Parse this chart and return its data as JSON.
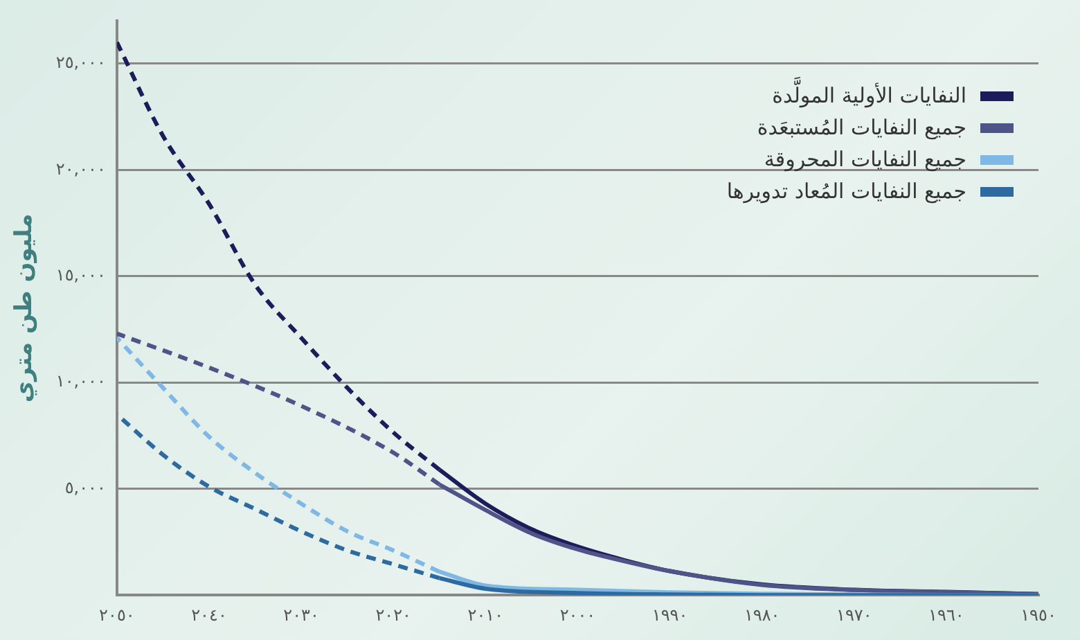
{
  "chart_data": {
    "type": "line",
    "ylabel": "مليون طن متري",
    "xlim": [
      2050,
      1950
    ],
    "xticks": [
      {
        "value": 2050,
        "label": "٢٠٥٠"
      },
      {
        "value": 2040,
        "label": "٢٠٤٠"
      },
      {
        "value": 2030,
        "label": "٢٠٣٠"
      },
      {
        "value": 2020,
        "label": "٢٠٢٠"
      },
      {
        "value": 2010,
        "label": "٢٠١٠"
      },
      {
        "value": 2000,
        "label": "٢٠٠٠"
      },
      {
        "value": 1990,
        "label": "١٩٩٠"
      },
      {
        "value": 1980,
        "label": "١٩٨٠"
      },
      {
        "value": 1970,
        "label": "١٩٧٠"
      },
      {
        "value": 1960,
        "label": "١٩٦٠"
      },
      {
        "value": 1950,
        "label": "١٩٥٠"
      }
    ],
    "ylim": [
      0,
      27000
    ],
    "yticks": [
      {
        "value": 5000,
        "label": "٥,٠٠٠"
      },
      {
        "value": 10000,
        "label": "١٠,٠٠٠"
      },
      {
        "value": 15000,
        "label": "١٥,٠٠٠"
      },
      {
        "value": 20000,
        "label": "٢٠,٠٠٠"
      },
      {
        "value": 25000,
        "label": "٢٥,٠٠٠"
      }
    ],
    "grid": "y",
    "legend": "top right",
    "marker": "none",
    "line_style": "solid",
    "series": [
      {
        "name": "النفايات الأولية المولَّدة",
        "color": "#1c1c5a",
        "x": [
          1950,
          1960,
          1970,
          1980,
          1990,
          1995,
          2000,
          2005,
          2010,
          2015
        ],
        "values": [
          50,
          150,
          250,
          500,
          1130,
          1650,
          2280,
          3100,
          4300,
          5900
        ]
      },
      {
        "name": "جميع النفايات المُستبعَدة",
        "color": "#4f5488",
        "x": [
          1950,
          1960,
          1970,
          1980,
          1990,
          1995,
          2000,
          2005,
          2010,
          2015
        ],
        "values": [
          50,
          140,
          240,
          480,
          1130,
          1600,
          2150,
          2900,
          4000,
          5200
        ]
      },
      {
        "name": "جميع النفايات المحروقة",
        "color": "#7fb8e4",
        "x": [
          1950,
          1960,
          1970,
          1980,
          1990,
          2000,
          2010,
          2015
        ],
        "values": [
          0,
          10,
          30,
          60,
          130,
          250,
          450,
          1100
        ]
      },
      {
        "name": "جميع النفايات المُعاد تدويرها",
        "color": "#2d6aa0",
        "x": [
          1950,
          1960,
          1970,
          1980,
          1990,
          2000,
          2010,
          2015
        ],
        "values": [
          0,
          0,
          0,
          0,
          30,
          100,
          300,
          800
        ]
      },
      {
        "color": "#1c1c5a",
        "line_style": "dashed",
        "x": [
          2015,
          2020,
          2025,
          2030,
          2035,
          2040,
          2045,
          2050
        ],
        "values": [
          5900,
          7650,
          9750,
          12100,
          14600,
          18400,
          21600,
          26000
        ]
      },
      {
        "color": "#4f5488",
        "line_style": "dashed",
        "x": [
          2015,
          2020,
          2030,
          2040,
          2050
        ],
        "values": [
          5200,
          6700,
          8900,
          10700,
          12300
        ]
      },
      {
        "color": "#7fb8e4",
        "line_style": "dashed",
        "x": [
          2015,
          2020,
          2025,
          2030,
          2035,
          2040,
          2045,
          2050
        ],
        "values": [
          1100,
          2100,
          3000,
          4300,
          5750,
          7450,
          9750,
          12100
        ]
      },
      {
        "color": "#2d6aa0",
        "line_style": "dashed",
        "x": [
          2015,
          2020,
          2025,
          2030,
          2035,
          2040,
          2045,
          2050
        ],
        "values": [
          800,
          1450,
          2100,
          3000,
          4050,
          5100,
          6600,
          8500
        ]
      }
    ]
  }
}
